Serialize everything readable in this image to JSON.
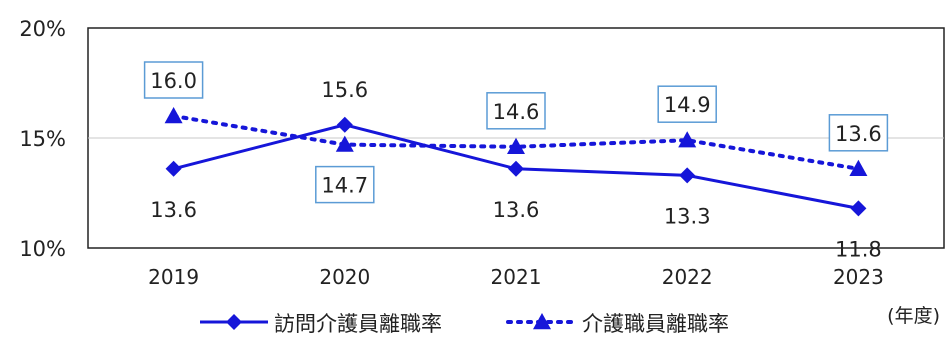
{
  "chart_data": {
    "type": "line",
    "x_unit_label": "(年度)",
    "categories": [
      "2019",
      "2020",
      "2021",
      "2022",
      "2023"
    ],
    "ylim": [
      10,
      20
    ],
    "yticks": [
      "10%",
      "15%",
      "20%"
    ],
    "ytick_values": [
      10,
      15,
      20
    ],
    "grid": "horizontal at 15%",
    "legend_position": "bottom",
    "series": [
      {
        "name": "訪問介護員離職率",
        "values": [
          13.6,
          15.6,
          13.6,
          13.3,
          11.8
        ],
        "labels": [
          "13.6",
          "15.6",
          "13.6",
          "13.3",
          "11.8"
        ],
        "color": "#1616d9",
        "style": "solid",
        "marker": "diamond",
        "label_boxed": false,
        "label_position": [
          "below",
          "above",
          "below",
          "below",
          "below"
        ]
      },
      {
        "name": "介護職員離職率",
        "values": [
          16.0,
          14.7,
          14.6,
          14.9,
          13.6
        ],
        "labels": [
          "16.0",
          "14.7",
          "14.6",
          "14.9",
          "13.6"
        ],
        "color": "#1616d9",
        "style": "dotted",
        "marker": "triangle",
        "label_boxed": true,
        "box_color": "#5b9bd5",
        "label_position": [
          "above",
          "below",
          "above",
          "above",
          "above"
        ]
      }
    ]
  }
}
